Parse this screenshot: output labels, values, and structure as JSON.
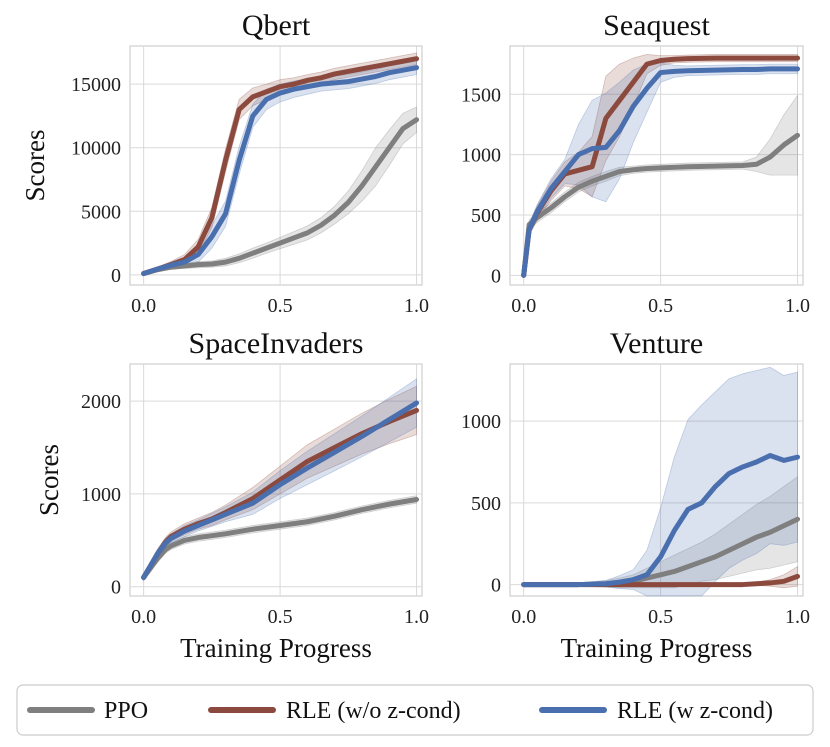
{
  "legend": [
    {
      "name": "PPO",
      "color": "#7f7f7f"
    },
    {
      "name": "RLE (w/o z-cond)",
      "color": "#8c4a3e"
    },
    {
      "name": "RLE (w z-cond)",
      "color": "#4a6fae"
    }
  ],
  "chart_data": [
    {
      "type": "line",
      "title": "Qbert",
      "xlabel": "",
      "ylabel": "Scores",
      "xlim": [
        -0.05,
        1.02
      ],
      "ylim": [
        -800,
        18000
      ],
      "xticks": [
        0.0,
        0.5,
        1.0
      ],
      "xtick_labels": [
        "0.0",
        "0.5",
        "1.0"
      ],
      "yticks": [
        0,
        5000,
        10000,
        15000
      ],
      "ytick_labels": [
        "0",
        "5000",
        "10000",
        "15000"
      ],
      "x": [
        0,
        0.05,
        0.1,
        0.15,
        0.2,
        0.25,
        0.3,
        0.35,
        0.4,
        0.45,
        0.5,
        0.55,
        0.6,
        0.65,
        0.7,
        0.75,
        0.8,
        0.85,
        0.9,
        0.95,
        1.0
      ],
      "series": [
        {
          "name": "PPO",
          "values": [
            100,
            400,
            600,
            700,
            800,
            850,
            1000,
            1300,
            1700,
            2100,
            2500,
            2900,
            3300,
            3900,
            4700,
            5700,
            7000,
            8500,
            10000,
            11500,
            12200
          ],
          "band": [
            50,
            100,
            150,
            200,
            250,
            250,
            300,
            350,
            400,
            400,
            450,
            500,
            550,
            600,
            700,
            900,
            1200,
            1500,
            1400,
            1200,
            1000
          ]
        },
        {
          "name": "RLE (w/o z-cond)",
          "values": [
            100,
            450,
            800,
            1200,
            2200,
            4500,
            9000,
            13000,
            14000,
            14400,
            14800,
            15000,
            15300,
            15500,
            15800,
            16000,
            16200,
            16400,
            16600,
            16800,
            17000
          ],
          "band": [
            80,
            150,
            250,
            400,
            600,
            800,
            900,
            800,
            700,
            600,
            550,
            500,
            450,
            450,
            450,
            450,
            450,
            450,
            450,
            450,
            450
          ]
        },
        {
          "name": "RLE (w z-cond)",
          "values": [
            100,
            450,
            750,
            1000,
            1600,
            3000,
            4800,
            9000,
            12500,
            13800,
            14300,
            14600,
            14800,
            15000,
            15100,
            15200,
            15400,
            15600,
            15900,
            16100,
            16300
          ],
          "band": [
            80,
            150,
            250,
            400,
            600,
            900,
            1000,
            1100,
            900,
            800,
            700,
            650,
            600,
            550,
            550,
            550,
            550,
            550,
            550,
            550,
            550
          ]
        }
      ]
    },
    {
      "type": "line",
      "title": "Seaquest",
      "xlabel": "",
      "ylabel": "",
      "xlim": [
        -0.05,
        1.02
      ],
      "ylim": [
        -80,
        1900
      ],
      "xticks": [
        0.0,
        0.5,
        1.0
      ],
      "xtick_labels": [
        "0.0",
        "0.5",
        "1.0"
      ],
      "yticks": [
        0,
        500,
        1000,
        1500
      ],
      "ytick_labels": [
        "0",
        "500",
        "1000",
        "1500"
      ],
      "x": [
        0,
        0.02,
        0.05,
        0.1,
        0.15,
        0.2,
        0.25,
        0.3,
        0.35,
        0.4,
        0.45,
        0.5,
        0.55,
        0.6,
        0.7,
        0.8,
        0.85,
        0.9,
        0.95,
        1.0
      ],
      "series": [
        {
          "name": "PPO",
          "values": [
            0,
            420,
            480,
            560,
            650,
            730,
            780,
            820,
            860,
            875,
            885,
            890,
            895,
            900,
            905,
            910,
            920,
            980,
            1080,
            1160
          ],
          "band": [
            0,
            40,
            40,
            40,
            40,
            40,
            40,
            40,
            35,
            30,
            30,
            30,
            30,
            30,
            30,
            30,
            60,
            150,
            250,
            330
          ]
        },
        {
          "name": "RLE (w/o z-cond)",
          "values": [
            0,
            380,
            520,
            700,
            840,
            870,
            900,
            1300,
            1450,
            1600,
            1750,
            1780,
            1790,
            1795,
            1800,
            1800,
            1800,
            1800,
            1800,
            1800
          ],
          "band": [
            0,
            50,
            60,
            80,
            100,
            150,
            250,
            350,
            300,
            200,
            80,
            40,
            30,
            30,
            30,
            30,
            30,
            30,
            30,
            30
          ]
        },
        {
          "name": "RLE (w z-cond)",
          "values": [
            0,
            380,
            530,
            720,
            860,
            1000,
            1050,
            1060,
            1200,
            1400,
            1550,
            1680,
            1690,
            1695,
            1700,
            1705,
            1705,
            1710,
            1710,
            1710
          ],
          "band": [
            0,
            50,
            60,
            80,
            100,
            250,
            400,
            450,
            400,
            300,
            200,
            80,
            50,
            40,
            40,
            40,
            40,
            40,
            40,
            40
          ]
        }
      ]
    },
    {
      "type": "line",
      "title": "SpaceInvaders",
      "xlabel": "Training Progress",
      "ylabel": "Scores",
      "xlim": [
        -0.05,
        1.02
      ],
      "ylim": [
        -100,
        2400
      ],
      "xticks": [
        0.0,
        0.5,
        1.0
      ],
      "xtick_labels": [
        "0.0",
        "0.5",
        "1.0"
      ],
      "yticks": [
        0,
        1000,
        2000
      ],
      "ytick_labels": [
        "0",
        "1000",
        "2000"
      ],
      "x": [
        0,
        0.02,
        0.05,
        0.08,
        0.1,
        0.15,
        0.2,
        0.25,
        0.3,
        0.4,
        0.5,
        0.6,
        0.7,
        0.8,
        0.9,
        1.0
      ],
      "series": [
        {
          "name": "PPO",
          "values": [
            100,
            180,
            300,
            400,
            440,
            500,
            530,
            550,
            570,
            620,
            660,
            700,
            760,
            830,
            890,
            940
          ],
          "band": [
            20,
            30,
            40,
            40,
            40,
            40,
            40,
            40,
            40,
            40,
            40,
            40,
            40,
            40,
            40,
            40
          ]
        },
        {
          "name": "RLE (w/o z-cond)",
          "values": [
            100,
            200,
            350,
            480,
            540,
            620,
            680,
            730,
            800,
            950,
            1150,
            1350,
            1500,
            1650,
            1780,
            1900
          ],
          "band": [
            30,
            40,
            50,
            50,
            50,
            60,
            60,
            70,
            80,
            120,
            150,
            180,
            200,
            220,
            240,
            260
          ]
        },
        {
          "name": "RLE (w z-cond)",
          "values": [
            100,
            200,
            350,
            470,
            520,
            600,
            660,
            720,
            780,
            900,
            1100,
            1280,
            1450,
            1620,
            1800,
            1980
          ],
          "band": [
            30,
            40,
            50,
            50,
            50,
            60,
            60,
            70,
            80,
            120,
            150,
            180,
            200,
            220,
            240,
            260
          ]
        }
      ]
    },
    {
      "type": "line",
      "title": "Venture",
      "xlabel": "Training Progress",
      "ylabel": "",
      "xlim": [
        -0.05,
        1.02
      ],
      "ylim": [
        -70,
        1350
      ],
      "xticks": [
        0.0,
        0.5,
        1.0
      ],
      "xtick_labels": [
        "0.0",
        "0.5",
        "1.0"
      ],
      "yticks": [
        0,
        500,
        1000
      ],
      "ytick_labels": [
        "0",
        "500",
        "1000"
      ],
      "x": [
        0,
        0.1,
        0.2,
        0.3,
        0.35,
        0.4,
        0.45,
        0.5,
        0.55,
        0.6,
        0.65,
        0.7,
        0.75,
        0.8,
        0.85,
        0.9,
        0.95,
        1.0
      ],
      "series": [
        {
          "name": "PPO",
          "values": [
            0,
            0,
            0,
            5,
            10,
            20,
            40,
            60,
            80,
            110,
            140,
            170,
            210,
            250,
            290,
            320,
            360,
            400
          ],
          "band": [
            0,
            5,
            10,
            20,
            30,
            40,
            60,
            80,
            100,
            110,
            120,
            140,
            160,
            180,
            200,
            220,
            240,
            260
          ]
        },
        {
          "name": "RLE (w/o z-cond)",
          "values": [
            0,
            0,
            0,
            0,
            0,
            0,
            0,
            0,
            0,
            0,
            0,
            0,
            0,
            0,
            5,
            10,
            20,
            50
          ],
          "band": [
            0,
            0,
            0,
            0,
            0,
            0,
            0,
            0,
            0,
            0,
            0,
            0,
            0,
            5,
            10,
            20,
            40,
            60
          ]
        },
        {
          "name": "RLE (w z-cond)",
          "values": [
            0,
            0,
            0,
            5,
            15,
            30,
            60,
            170,
            330,
            460,
            500,
            600,
            680,
            720,
            750,
            790,
            760,
            780
          ],
          "band": [
            0,
            5,
            10,
            20,
            40,
            60,
            150,
            300,
            450,
            550,
            600,
            580,
            580,
            570,
            560,
            540,
            520,
            520
          ]
        }
      ]
    }
  ]
}
